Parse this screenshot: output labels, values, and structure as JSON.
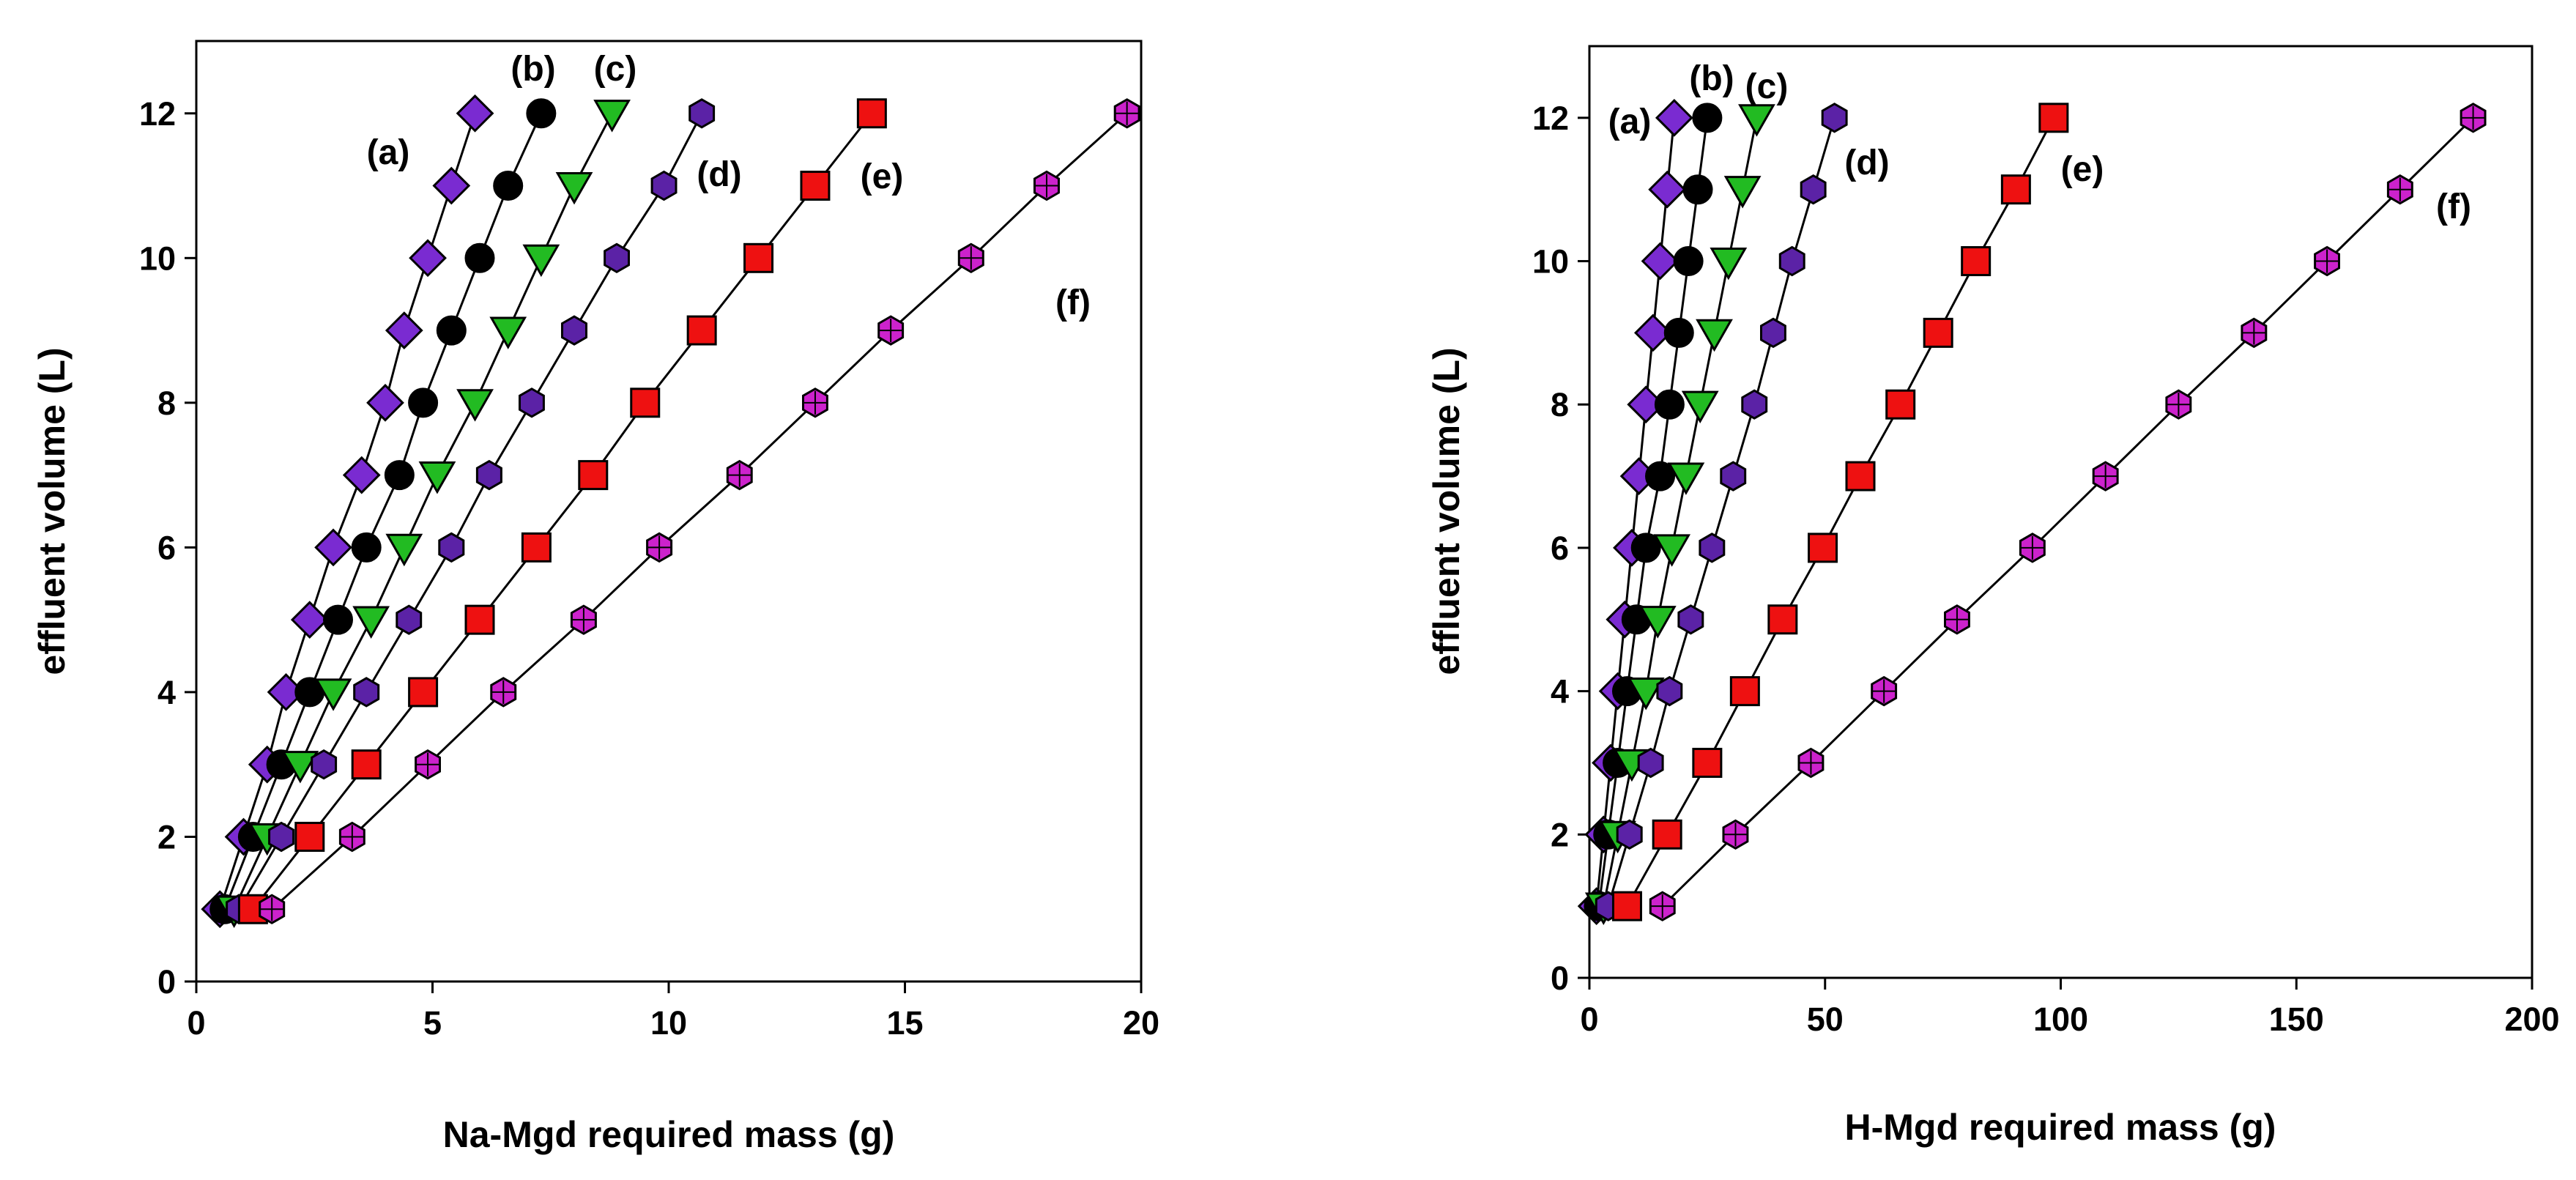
{
  "chart_data": [
    {
      "type": "scatter",
      "xlabel": "Na-Mgd required mass (g)",
      "ylabel": "effluent volume (L)",
      "xlim": [
        0,
        20
      ],
      "ylim": [
        0,
        13
      ],
      "xticks": [
        0,
        5,
        10,
        15,
        20
      ],
      "yticks": [
        0,
        2,
        4,
        6,
        8,
        10,
        12
      ],
      "grid": false,
      "y": [
        1,
        2,
        3,
        4,
        5,
        6,
        7,
        8,
        9,
        10,
        11,
        12
      ],
      "series": [
        {
          "name": "(a)",
          "marker": "diamond",
          "color": "#7a2bd1",
          "x": [
            0.5,
            1.0,
            1.5,
            1.9,
            2.4,
            2.9,
            3.5,
            4.0,
            4.4,
            4.9,
            5.4,
            5.9
          ]
        },
        {
          "name": "(b)",
          "marker": "circle",
          "color": "#000000",
          "x": [
            0.6,
            1.2,
            1.8,
            2.4,
            3.0,
            3.6,
            4.3,
            4.8,
            5.4,
            6.0,
            6.6,
            7.3
          ]
        },
        {
          "name": "(c)",
          "marker": "triangle-down",
          "color": "#22bb22",
          "x": [
            0.8,
            1.5,
            2.2,
            2.9,
            3.7,
            4.4,
            5.1,
            5.9,
            6.6,
            7.3,
            8.0,
            8.8
          ]
        },
        {
          "name": "(d)",
          "marker": "hexagon",
          "color": "#5b22a6",
          "x": [
            0.9,
            1.8,
            2.7,
            3.6,
            4.5,
            5.4,
            6.2,
            7.1,
            8.0,
            8.9,
            9.9,
            10.7
          ]
        },
        {
          "name": "(e)",
          "marker": "square",
          "color": "#ee1111",
          "x": [
            1.2,
            2.4,
            3.6,
            4.8,
            6.0,
            7.2,
            8.4,
            9.5,
            10.7,
            11.9,
            13.1,
            14.3
          ]
        },
        {
          "name": "(f)",
          "marker": "hexagon-cross",
          "color": "#cc22cc",
          "x": [
            1.6,
            3.3,
            4.9,
            6.5,
            8.2,
            9.8,
            11.5,
            13.1,
            14.7,
            16.4,
            18.0,
            19.7
          ]
        }
      ]
    },
    {
      "type": "scatter",
      "xlabel": "H-Mgd required mass (g)",
      "ylabel": "effluent volume (L)",
      "xlim": [
        0,
        200
      ],
      "ylim": [
        0,
        13
      ],
      "xticks": [
        0,
        50,
        100,
        150,
        200
      ],
      "yticks": [
        0,
        2,
        4,
        6,
        8,
        10,
        12
      ],
      "grid": false,
      "y": [
        1,
        2,
        3,
        4,
        5,
        6,
        7,
        8,
        9,
        10,
        11,
        12
      ],
      "series": [
        {
          "name": "(a)",
          "marker": "diamond",
          "color": "#7a2bd1",
          "x": [
            1.5,
            3.0,
            4.5,
            6.0,
            7.5,
            9.0,
            10.5,
            12.0,
            13.5,
            15.0,
            16.5,
            18.0
          ]
        },
        {
          "name": "(b)",
          "marker": "circle",
          "color": "#000000",
          "x": [
            2.0,
            4.0,
            6.0,
            8.0,
            10.0,
            12.0,
            15.0,
            17.0,
            19.0,
            21.0,
            23.0,
            25.0
          ]
        },
        {
          "name": "(c)",
          "marker": "triangle-down",
          "color": "#22bb22",
          "x": [
            3.0,
            6.0,
            9.0,
            12.0,
            14.5,
            17.5,
            20.5,
            23.5,
            26.5,
            29.5,
            32.5,
            35.5
          ]
        },
        {
          "name": "(d)",
          "marker": "hexagon",
          "color": "#5b22a6",
          "x": [
            4.0,
            8.5,
            13.0,
            17.0,
            21.5,
            26.0,
            30.5,
            35.0,
            39.0,
            43.0,
            47.5,
            52.0
          ]
        },
        {
          "name": "(e)",
          "marker": "square",
          "color": "#ee1111",
          "x": [
            8.0,
            16.5,
            25.0,
            33.0,
            41.0,
            49.5,
            57.5,
            66.0,
            74.0,
            82.0,
            90.5,
            98.5
          ]
        },
        {
          "name": "(f)",
          "marker": "hexagon-cross",
          "color": "#cc22cc",
          "x": [
            15.5,
            31.0,
            47.0,
            62.5,
            78.0,
            94.0,
            109.5,
            125.0,
            141.0,
            156.5,
            172.0,
            187.5
          ]
        }
      ]
    }
  ]
}
